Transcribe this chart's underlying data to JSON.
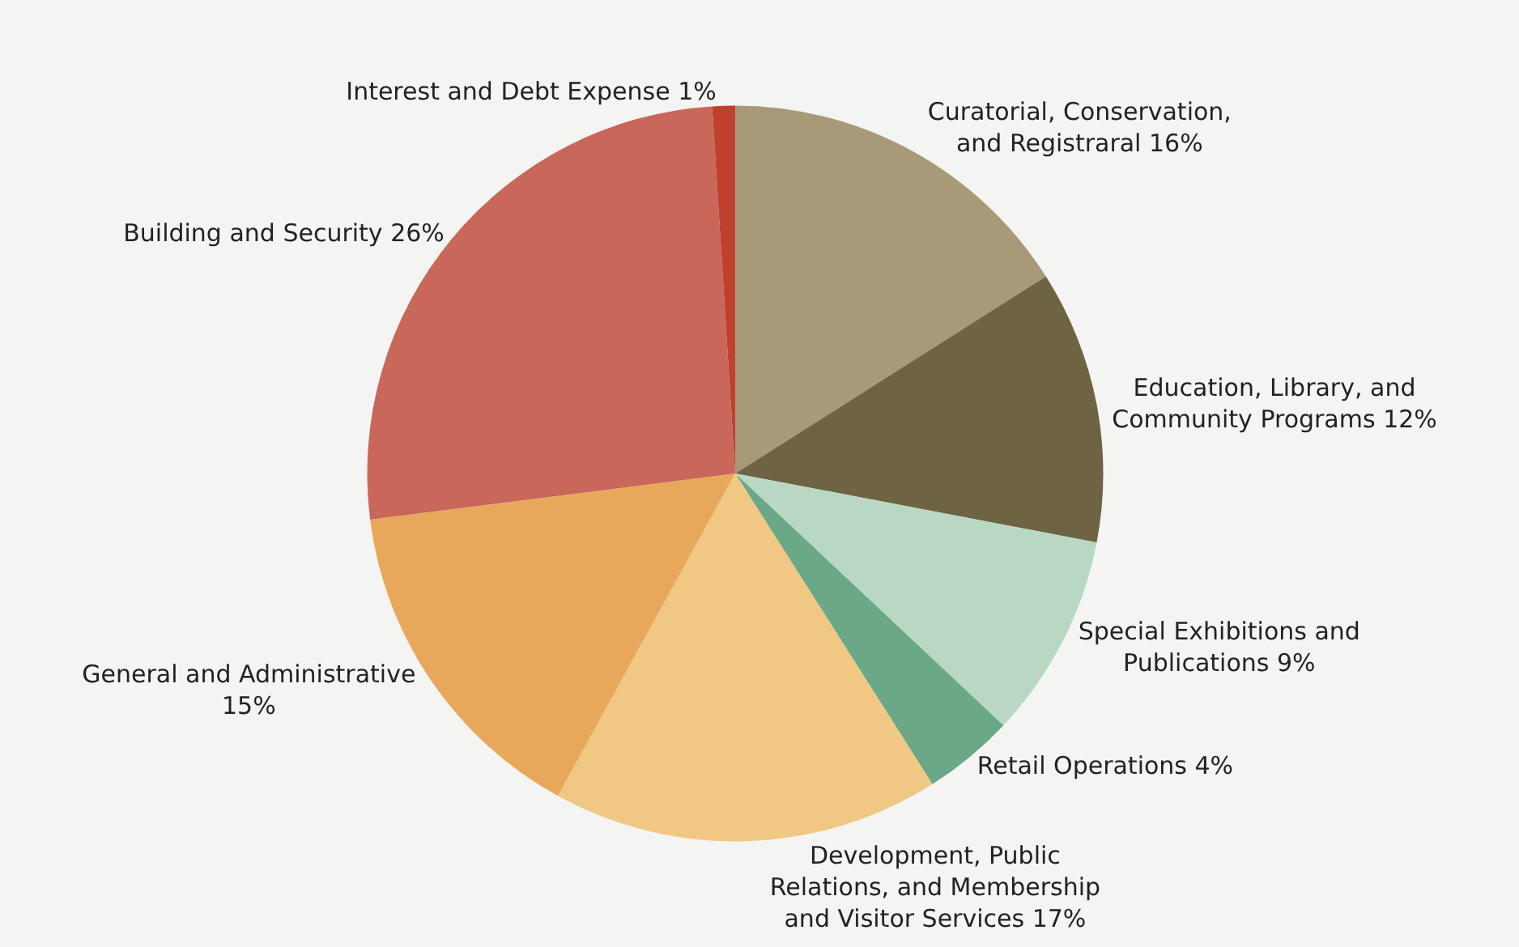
{
  "chart_data": {
    "type": "pie",
    "categories": [
      "Curatorial, Conservation, and Registraral",
      "Education, Library, and Community Programs",
      "Special Exhibitions and Publications",
      "Retail Operations",
      "Development, Public Relations, and Membership and Visitor Services",
      "General and Administrative",
      "Building and Security",
      "Interest and Debt Expense"
    ],
    "values": [
      16,
      12,
      9,
      4,
      17,
      15,
      26,
      1
    ],
    "value_labels": [
      "16%",
      "12%",
      "9%",
      "4%",
      "17%",
      "15%",
      "26%",
      "1%"
    ],
    "colors": [
      "#a89a78",
      "#6e6444",
      "#b8d8c4",
      "#6aa888",
      "#f0c884",
      "#e8a85c",
      "#c8675a",
      "#c0402e"
    ],
    "legend": false
  }
}
